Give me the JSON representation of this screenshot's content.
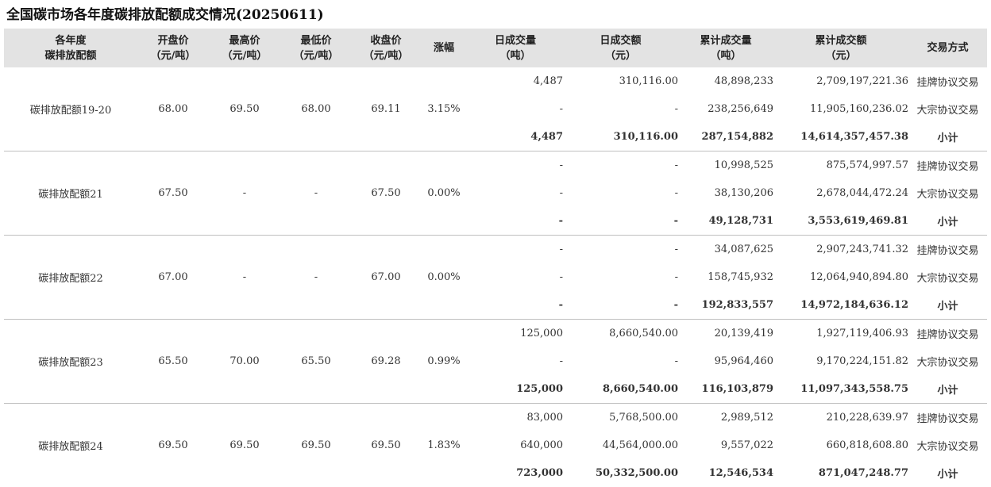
{
  "title": "全国碳市场各年度碳排放配额成交情况(20250611)",
  "headers": [
    [
      "各年度",
      "碳排放配额"
    ],
    [
      "开盘价",
      "（元/吨）"
    ],
    [
      "最高价",
      "（元/吨）"
    ],
    [
      "最低价",
      "（元/吨）"
    ],
    [
      "收盘价",
      "（元/吨）"
    ],
    [
      "涨幅"
    ],
    [
      "日成交量",
      "（吨）"
    ],
    [
      "日成交额",
      "（元）"
    ],
    [
      "累计成交量",
      "（吨）"
    ],
    [
      "累计成交额",
      "（元）"
    ],
    [
      "交易方式"
    ]
  ],
  "groups": [
    {
      "name": "碳排放配额19-20",
      "open": "68.00",
      "high": "69.50",
      "low": "68.00",
      "close": "69.11",
      "change": "3.15%",
      "rows": [
        {
          "vol": "4,487",
          "amt": "310,116.00",
          "cvol": "48,898,233",
          "camt": "2,709,197,221.36",
          "mode": "挂牌协议交易"
        },
        {
          "vol": "-",
          "amt": "-",
          "cvol": "238,256,649",
          "camt": "11,905,160,236.02",
          "mode": "大宗协议交易"
        },
        {
          "vol": "4,487",
          "amt": "310,116.00",
          "cvol": "287,154,882",
          "camt": "14,614,357,457.38",
          "mode": "小计"
        }
      ]
    },
    {
      "name": "碳排放配额21",
      "open": "67.50",
      "high": "-",
      "low": "-",
      "close": "67.50",
      "change": "0.00%",
      "rows": [
        {
          "vol": "-",
          "amt": "-",
          "cvol": "10,998,525",
          "camt": "875,574,997.57",
          "mode": "挂牌协议交易"
        },
        {
          "vol": "-",
          "amt": "-",
          "cvol": "38,130,206",
          "camt": "2,678,044,472.24",
          "mode": "大宗协议交易"
        },
        {
          "vol": "-",
          "amt": "-",
          "cvol": "49,128,731",
          "camt": "3,553,619,469.81",
          "mode": "小计"
        }
      ]
    },
    {
      "name": "碳排放配额22",
      "open": "67.00",
      "high": "-",
      "low": "-",
      "close": "67.00",
      "change": "0.00%",
      "rows": [
        {
          "vol": "-",
          "amt": "-",
          "cvol": "34,087,625",
          "camt": "2,907,243,741.32",
          "mode": "挂牌协议交易"
        },
        {
          "vol": "-",
          "amt": "-",
          "cvol": "158,745,932",
          "camt": "12,064,940,894.80",
          "mode": "大宗协议交易"
        },
        {
          "vol": "-",
          "amt": "-",
          "cvol": "192,833,557",
          "camt": "14,972,184,636.12",
          "mode": "小计"
        }
      ]
    },
    {
      "name": "碳排放配额23",
      "open": "65.50",
      "high": "70.00",
      "low": "65.50",
      "close": "69.28",
      "change": "0.99%",
      "rows": [
        {
          "vol": "125,000",
          "amt": "8,660,540.00",
          "cvol": "20,139,419",
          "camt": "1,927,119,406.93",
          "mode": "挂牌协议交易"
        },
        {
          "vol": "-",
          "amt": "-",
          "cvol": "95,964,460",
          "camt": "9,170,224,151.82",
          "mode": "大宗协议交易"
        },
        {
          "vol": "125,000",
          "amt": "8,660,540.00",
          "cvol": "116,103,879",
          "camt": "11,097,343,558.75",
          "mode": "小计"
        }
      ]
    },
    {
      "name": "碳排放配额24",
      "open": "69.50",
      "high": "69.50",
      "low": "69.50",
      "close": "69.50",
      "change": "1.83%",
      "rows": [
        {
          "vol": "83,000",
          "amt": "5,768,500.00",
          "cvol": "2,989,512",
          "camt": "210,228,639.97",
          "mode": "挂牌协议交易"
        },
        {
          "vol": "640,000",
          "amt": "44,564,000.00",
          "cvol": "9,557,022",
          "camt": "660,818,608.80",
          "mode": "大宗协议交易"
        },
        {
          "vol": "723,000",
          "amt": "50,332,500.00",
          "cvol": "12,546,534",
          "camt": "871,047,248.77",
          "mode": "小计"
        }
      ]
    }
  ]
}
